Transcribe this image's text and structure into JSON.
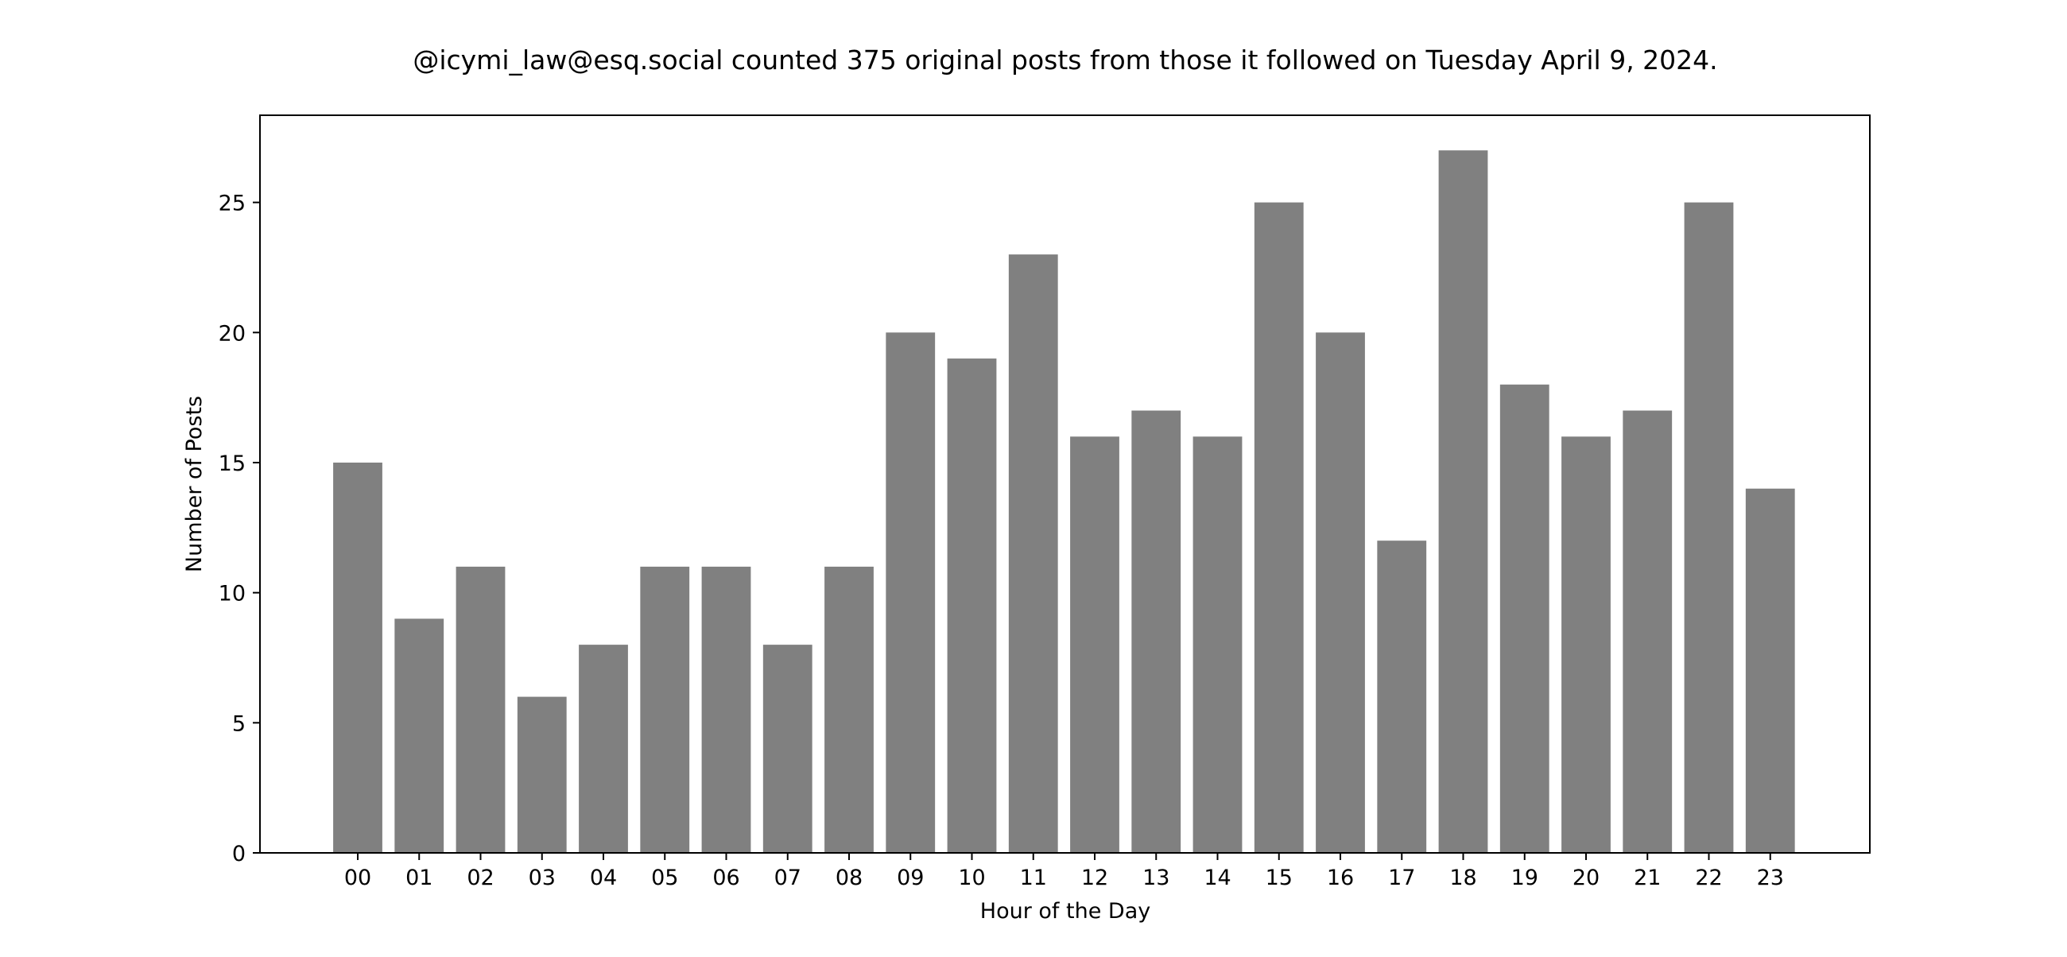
{
  "chart_data": {
    "type": "bar",
    "title": "@icymi_law@esq.social counted 375 original posts from those it followed on Tuesday April 9, 2024.",
    "xlabel": "Hour of the Day",
    "ylabel": "Number of Posts",
    "categories": [
      "00",
      "01",
      "02",
      "03",
      "04",
      "05",
      "06",
      "07",
      "08",
      "09",
      "10",
      "11",
      "12",
      "13",
      "14",
      "15",
      "16",
      "17",
      "18",
      "19",
      "20",
      "21",
      "22",
      "23"
    ],
    "values": [
      15,
      9,
      11,
      6,
      8,
      11,
      11,
      8,
      11,
      20,
      19,
      23,
      16,
      17,
      16,
      25,
      20,
      12,
      27,
      18,
      16,
      17,
      25,
      14
    ],
    "ylim": [
      0,
      28.35
    ],
    "yticks": [
      0,
      5,
      10,
      15,
      20,
      25
    ],
    "grid": false,
    "legend": "none",
    "colors": {
      "bar": "#808080",
      "axes": "#000000",
      "background": "#ffffff"
    }
  }
}
